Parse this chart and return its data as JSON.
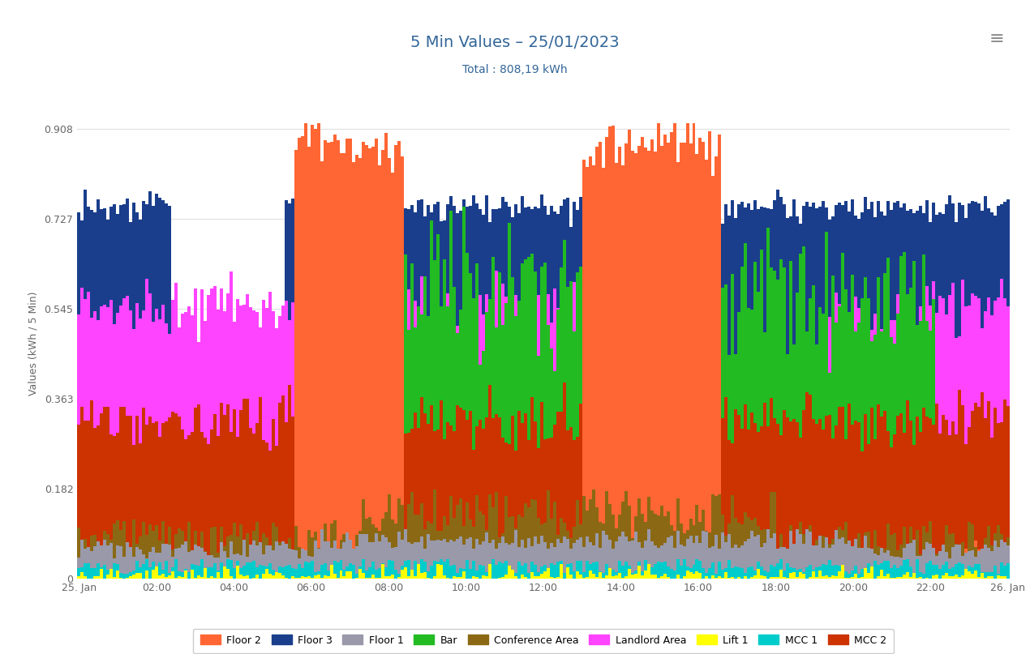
{
  "title": "5 Min Values – 25/01/2023",
  "subtitle": "Total : 808,19 kWh",
  "ylabel": "Values (kWh / 5 Min)",
  "ylim": [
    0,
    0.95
  ],
  "yticks": [
    0,
    0.182,
    0.363,
    0.545,
    0.727,
    0.908
  ],
  "xtick_labels": [
    "25. Jan",
    "02:00",
    "04:00",
    "06:00",
    "08:00",
    "10:00",
    "12:00",
    "14:00",
    "16:00",
    "18:00",
    "20:00",
    "22:00",
    "26. Jan"
  ],
  "n_bars": 288,
  "series": [
    {
      "name": "Floor 2",
      "color": "#FF6633"
    },
    {
      "name": "Floor 3",
      "color": "#1A3E8C"
    },
    {
      "name": "Floor 1",
      "color": "#9999AA"
    },
    {
      "name": "Bar",
      "color": "#22BB22"
    },
    {
      "name": "Conference Area",
      "color": "#8B6914"
    },
    {
      "name": "Landlord Area",
      "color": "#FF44FF"
    },
    {
      "name": "Lift 1",
      "color": "#FFFF00"
    },
    {
      "name": "MCC 1",
      "color": "#00CCCC"
    },
    {
      "name": "MCC 2",
      "color": "#CC3300"
    }
  ],
  "background_color": "#FFFFFF",
  "grid_color": "#E0E0E0",
  "title_color": "#336699",
  "subtitle_color": "#336699",
  "axis_label_color": "#666666",
  "tick_color": "#666666"
}
